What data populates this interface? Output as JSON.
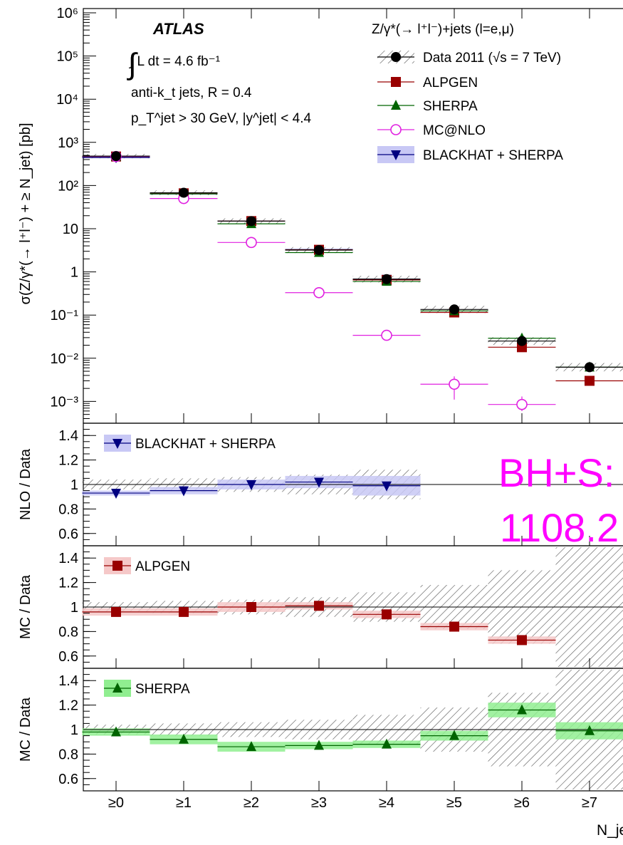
{
  "chart_data": [
    {
      "type": "scatter",
      "panel": "main",
      "yscale": "log",
      "ylim": [
        0.0004,
        1000000
      ],
      "ylabel": "σ(Z/γ*(→ l⁺l⁻) + ≥ N_jet) [pb]",
      "ytick_labels": [
        "10⁶",
        "10⁵",
        "10⁴",
        "10³",
        "10²",
        "10",
        "1",
        "10⁻¹",
        "10⁻²",
        "10⁻³"
      ],
      "categories": [
        "≥0",
        "≥1",
        "≥2",
        "≥3",
        "≥4",
        "≥5",
        "≥6",
        "≥7"
      ],
      "grid": false,
      "legend_position": "top-right",
      "header": {
        "experiment": "ATLAS",
        "lumi": "∫ L dt = 4.6 fb⁻¹",
        "jets": "anti-k_t jets, R = 0.4",
        "cuts": "p_T^jet > 30 GeV, |y^jet| < 4.4",
        "process": "Z/γ*(→ l⁺l⁻)+jets (l=e,μ)"
      },
      "series": [
        {
          "name": "Data 2011 (√s = 7 TeV)",
          "marker": "filled-circle",
          "color": "#000000",
          "values": [
            480,
            68,
            15,
            3.2,
            0.68,
            0.135,
            0.025,
            0.0062
          ]
        },
        {
          "name": "ALPGEN",
          "marker": "filled-square",
          "color": "#990000",
          "values": [
            470,
            66,
            15,
            3.25,
            0.65,
            0.115,
            0.018,
            0.003
          ]
        },
        {
          "name": "SHERPA",
          "marker": "filled-triangle",
          "color": "#006400",
          "values": [
            470,
            64,
            13,
            2.8,
            0.6,
            0.125,
            0.029,
            0.0062
          ]
        },
        {
          "name": "MC@NLO",
          "marker": "open-circle",
          "color": "#e020e0",
          "values": [
            470,
            50,
            4.8,
            0.33,
            0.034,
            0.0025,
            0.00085,
            null
          ]
        },
        {
          "name": "BLACKHAT + SHERPA",
          "marker": "filled-down-triangle",
          "color": "#000080",
          "values": [
            445,
            64,
            15,
            3.3,
            0.68,
            null,
            null,
            null
          ]
        }
      ]
    },
    {
      "type": "scatter",
      "panel": "ratio-nlo",
      "ylabel": "NLO / Data",
      "ylim": [
        0.5,
        1.5
      ],
      "ytick_labels": [
        "1.4",
        "1.2",
        "1",
        "0.8",
        "0.6"
      ],
      "series": [
        {
          "name": "BLACKHAT + SHERPA",
          "values": [
            0.93,
            0.95,
            1.0,
            1.02,
            0.99
          ]
        }
      ]
    },
    {
      "type": "scatter",
      "panel": "ratio-alpgen",
      "ylabel": "MC / Data",
      "ylim": [
        0.5,
        1.5
      ],
      "ytick_labels": [
        "1.4",
        "1.2",
        "1",
        "0.8",
        "0.6"
      ],
      "series": [
        {
          "name": "ALPGEN",
          "values": [
            0.96,
            0.96,
            1.0,
            1.01,
            0.94,
            0.84,
            0.73
          ]
        }
      ]
    },
    {
      "type": "scatter",
      "panel": "ratio-sherpa",
      "ylabel": "MC / Data",
      "ylim": [
        0.5,
        1.5
      ],
      "ytick_labels": [
        "1.4",
        "1.2",
        "1",
        "0.8",
        "0.6"
      ],
      "series": [
        {
          "name": "SHERPA",
          "values": [
            0.98,
            0.92,
            0.86,
            0.87,
            0.88,
            0.95,
            1.16,
            0.99
          ]
        }
      ]
    }
  ],
  "xlabel": "N_jet",
  "overlay": {
    "line1": "BH+S:",
    "line2": "1108.2"
  },
  "colors": {
    "data": "#000000",
    "alpgen": "#990000",
    "sherpa": "#006400",
    "mcnlo": "#e020e0",
    "blackhat": "#000080",
    "blackhat_band": "#c8c8f5",
    "alpgen_band": "#f5c8c8",
    "sherpa_band": "#90ee90",
    "overlay": "#ff00ff"
  }
}
